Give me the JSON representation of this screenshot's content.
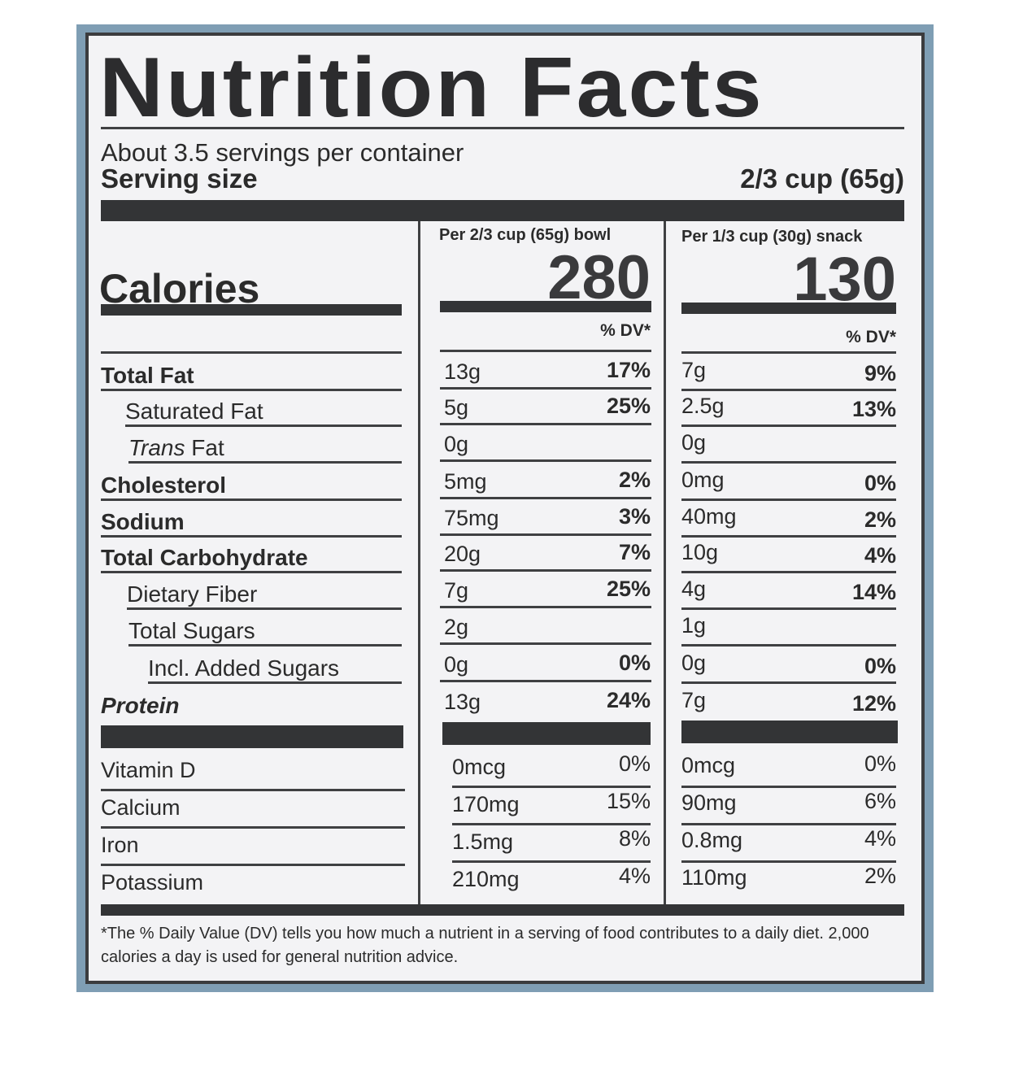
{
  "title": "Nutrition Facts",
  "servings_per_container": "About 3.5 servings per container",
  "serving_size_label": "Serving size",
  "serving_size_value": "2/3 cup (65g)",
  "calories_label": "Calories",
  "columns": [
    {
      "header": "Per 2/3 cup (65g) bowl",
      "calories": "280",
      "dv_header": "% DV*"
    },
    {
      "header": "Per 1/3 cup (30g) snack",
      "calories": "130",
      "dv_header": "% DV*"
    }
  ],
  "nutrients": [
    {
      "label": "Total Fat",
      "bowl_amt": "13g",
      "bowl_dv": "17%",
      "snack_amt": "7g",
      "snack_dv": "9%"
    },
    {
      "label": "Saturated Fat",
      "bowl_amt": "5g",
      "bowl_dv": "25%",
      "snack_amt": "2.5g",
      "snack_dv": "13%"
    },
    {
      "label_italic": "Trans",
      "label": " Fat",
      "bowl_amt": "0g",
      "bowl_dv": "",
      "snack_amt": "0g",
      "snack_dv": ""
    },
    {
      "label": "Cholesterol",
      "bowl_amt": "5mg",
      "bowl_dv": "2%",
      "snack_amt": "0mg",
      "snack_dv": "0%"
    },
    {
      "label": "Sodium",
      "bowl_amt": "75mg",
      "bowl_dv": "3%",
      "snack_amt": "40mg",
      "snack_dv": "2%"
    },
    {
      "label": "Total Carbohydrate",
      "bowl_amt": "20g",
      "bowl_dv": "7%",
      "snack_amt": "10g",
      "snack_dv": "4%"
    },
    {
      "label": "Dietary Fiber",
      "bowl_amt": "7g",
      "bowl_dv": "25%",
      "snack_amt": "4g",
      "snack_dv": "14%"
    },
    {
      "label": "Total Sugars",
      "bowl_amt": "2g",
      "bowl_dv": "",
      "snack_amt": "1g",
      "snack_dv": ""
    },
    {
      "label": "Incl. Added Sugars",
      "bowl_amt": "0g",
      "bowl_dv": "0%",
      "snack_amt": "0g",
      "snack_dv": "0%"
    },
    {
      "label": "Protein",
      "bowl_amt": "13g",
      "bowl_dv": "24%",
      "snack_amt": "7g",
      "snack_dv": "12%"
    }
  ],
  "vitamins": [
    {
      "label": "Vitamin D",
      "bowl_amt": "0mcg",
      "bowl_dv": "0%",
      "snack_amt": "0mcg",
      "snack_dv": "0%"
    },
    {
      "label": "Calcium",
      "bowl_amt": "170mg",
      "bowl_dv": "15%",
      "snack_amt": "90mg",
      "snack_dv": "6%"
    },
    {
      "label": "Iron",
      "bowl_amt": "1.5mg",
      "bowl_dv": "8%",
      "snack_amt": "0.8mg",
      "snack_dv": "4%"
    },
    {
      "label": "Potassium",
      "bowl_amt": "210mg",
      "bowl_dv": "4%",
      "snack_amt": "110mg",
      "snack_dv": "2%"
    }
  ],
  "footnote": "*The % Daily Value (DV) tells you how much a nutrient in a serving of food contributes to a daily diet. 2,000 calories a day is used for general nutrition advice."
}
